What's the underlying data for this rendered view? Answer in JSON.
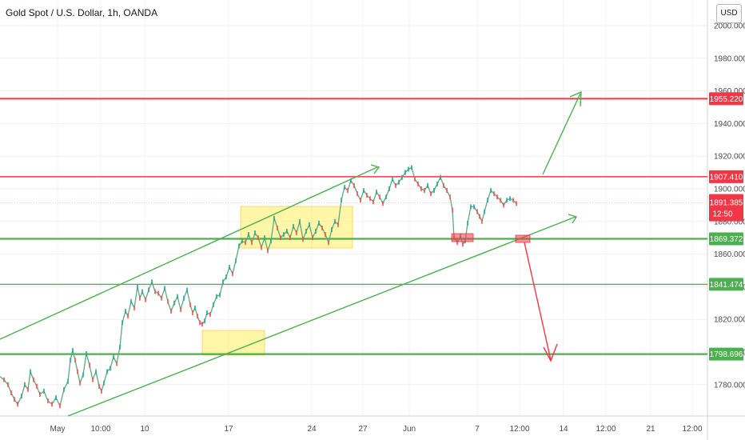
{
  "header": {
    "title": "Gold Spot / U.S. Dollar, 1h, OANDA",
    "currency_label": "USD"
  },
  "chart_data": {
    "type": "line",
    "title": "Gold Spot / U.S. Dollar, 1h, OANDA",
    "xlabel": "",
    "ylabel": "",
    "ylim": [
      1766,
      2005
    ],
    "y_ticks": [
      "2000.000",
      "1980.000",
      "1960.000",
      "1940.000",
      "1920.000",
      "1900.000",
      "1880.000",
      "1860.000",
      "1840.000",
      "1820.000",
      "1800.000",
      "1780.000"
    ],
    "x_ticks": [
      "May",
      "10:00",
      "10",
      "17",
      "24",
      "27",
      "Jun",
      "7",
      "12:00",
      "14",
      "12:00",
      "21",
      "12:00"
    ],
    "current_price": {
      "value": "1891.385",
      "countdown": "12:50"
    },
    "horizontal_levels": [
      {
        "value": "1955.220",
        "color": "#f23645"
      },
      {
        "value": "1907.410",
        "color": "#f23645"
      },
      {
        "value": "1869.372",
        "color": "#4caf50"
      },
      {
        "value": "1841.474",
        "color": "#4caf50"
      },
      {
        "value": "1798.696",
        "color": "#4caf50"
      }
    ],
    "series": [
      {
        "points": [
          [
            0,
            1785
          ],
          [
            5,
            1783
          ],
          [
            10,
            1780
          ],
          [
            14,
            1775
          ],
          [
            18,
            1771
          ],
          [
            22,
            1768
          ],
          [
            27,
            1773
          ],
          [
            31,
            1780
          ],
          [
            35,
            1777
          ],
          [
            38,
            1788
          ],
          [
            42,
            1783
          ],
          [
            46,
            1779
          ],
          [
            50,
            1774
          ],
          [
            55,
            1776
          ],
          [
            60,
            1770
          ],
          [
            65,
            1768
          ],
          [
            70,
            1772
          ],
          [
            75,
            1767
          ],
          [
            80,
            1777
          ],
          [
            85,
            1782
          ],
          [
            88,
            1795
          ],
          [
            91,
            1801
          ],
          [
            94,
            1795
          ],
          [
            97,
            1788
          ],
          [
            100,
            1781
          ],
          [
            104,
            1786
          ],
          [
            108,
            1799
          ],
          [
            112,
            1792
          ],
          [
            116,
            1783
          ],
          [
            120,
            1788
          ],
          [
            124,
            1779
          ],
          [
            127,
            1776
          ],
          [
            130,
            1781
          ],
          [
            134,
            1788
          ],
          [
            138,
            1790
          ],
          [
            142,
            1797
          ],
          [
            146,
            1793
          ],
          [
            150,
            1803
          ],
          [
            153,
            1818
          ],
          [
            157,
            1825
          ],
          [
            160,
            1822
          ],
          [
            164,
            1831
          ],
          [
            168,
            1827
          ],
          [
            172,
            1840
          ],
          [
            175,
            1833
          ],
          [
            178,
            1837
          ],
          [
            182,
            1832
          ],
          [
            186,
            1838
          ],
          [
            190,
            1843
          ],
          [
            194,
            1837
          ],
          [
            198,
            1836
          ],
          [
            202,
            1833
          ],
          [
            206,
            1839
          ],
          [
            210,
            1831
          ],
          [
            214,
            1825
          ],
          [
            218,
            1830
          ],
          [
            222,
            1834
          ],
          [
            226,
            1826
          ],
          [
            230,
            1833
          ],
          [
            234,
            1838
          ],
          [
            238,
            1829
          ],
          [
            241,
            1824
          ],
          [
            244,
            1827
          ],
          [
            247,
            1822
          ],
          [
            250,
            1818
          ],
          [
            253,
            1817
          ],
          [
            256,
            1819
          ],
          [
            259,
            1824
          ],
          [
            263,
            1823
          ],
          [
            267,
            1829
          ],
          [
            271,
            1834
          ],
          [
            275,
            1835
          ],
          [
            279,
            1843
          ],
          [
            283,
            1846
          ],
          [
            287,
            1852
          ],
          [
            291,
            1848
          ],
          [
            295,
            1856
          ],
          [
            299,
            1865
          ],
          [
            303,
            1868
          ],
          [
            307,
            1867
          ],
          [
            311,
            1872
          ],
          [
            315,
            1867
          ],
          [
            319,
            1873
          ],
          [
            323,
            1870
          ],
          [
            327,
            1864
          ],
          [
            331,
            1870
          ],
          [
            335,
            1862
          ],
          [
            339,
            1868
          ],
          [
            343,
            1882
          ],
          [
            347,
            1876
          ],
          [
            351,
            1870
          ],
          [
            355,
            1872
          ],
          [
            359,
            1874
          ],
          [
            363,
            1870
          ],
          [
            367,
            1877
          ],
          [
            371,
            1873
          ],
          [
            375,
            1880
          ],
          [
            379,
            1869
          ],
          [
            383,
            1874
          ],
          [
            387,
            1878
          ],
          [
            391,
            1870
          ],
          [
            395,
            1874
          ],
          [
            399,
            1879
          ],
          [
            403,
            1876
          ],
          [
            407,
            1872
          ],
          [
            411,
            1867
          ],
          [
            415,
            1875
          ],
          [
            419,
            1880
          ],
          [
            423,
            1878
          ],
          [
            427,
            1893
          ],
          [
            431,
            1901
          ],
          [
            435,
            1899
          ],
          [
            439,
            1905
          ],
          [
            443,
            1902
          ],
          [
            447,
            1897
          ],
          [
            451,
            1893
          ],
          [
            455,
            1899
          ],
          [
            459,
            1896
          ],
          [
            463,
            1894
          ],
          [
            467,
            1892
          ],
          [
            471,
            1898
          ],
          [
            475,
            1895
          ],
          [
            479,
            1891
          ],
          [
            483,
            1895
          ],
          [
            487,
            1900
          ],
          [
            491,
            1906
          ],
          [
            495,
            1902
          ],
          [
            499,
            1904
          ],
          [
            503,
            1907
          ],
          [
            507,
            1910
          ],
          [
            511,
            1912
          ],
          [
            515,
            1913
          ],
          [
            519,
            1906
          ],
          [
            523,
            1903
          ],
          [
            527,
            1900
          ],
          [
            531,
            1899
          ],
          [
            535,
            1902
          ],
          [
            539,
            1897
          ],
          [
            543,
            1899
          ],
          [
            547,
            1903
          ],
          [
            551,
            1907
          ],
          [
            555,
            1902
          ],
          [
            559,
            1899
          ],
          [
            563,
            1895
          ],
          [
            566,
            1887
          ],
          [
            568,
            1870
          ],
          [
            572,
            1867
          ],
          [
            576,
            1871
          ],
          [
            579,
            1866
          ],
          [
            582,
            1868
          ],
          [
            585,
            1879
          ],
          [
            589,
            1889
          ],
          [
            593,
            1889
          ],
          [
            597,
            1886
          ],
          [
            600,
            1883
          ],
          [
            603,
            1880
          ],
          [
            606,
            1886
          ],
          [
            610,
            1893
          ],
          [
            614,
            1899
          ],
          [
            618,
            1897
          ],
          [
            622,
            1895
          ],
          [
            626,
            1893
          ],
          [
            630,
            1890
          ],
          [
            634,
            1893
          ],
          [
            638,
            1894
          ],
          [
            642,
            1893
          ],
          [
            646,
            1891
          ]
        ]
      }
    ]
  }
}
